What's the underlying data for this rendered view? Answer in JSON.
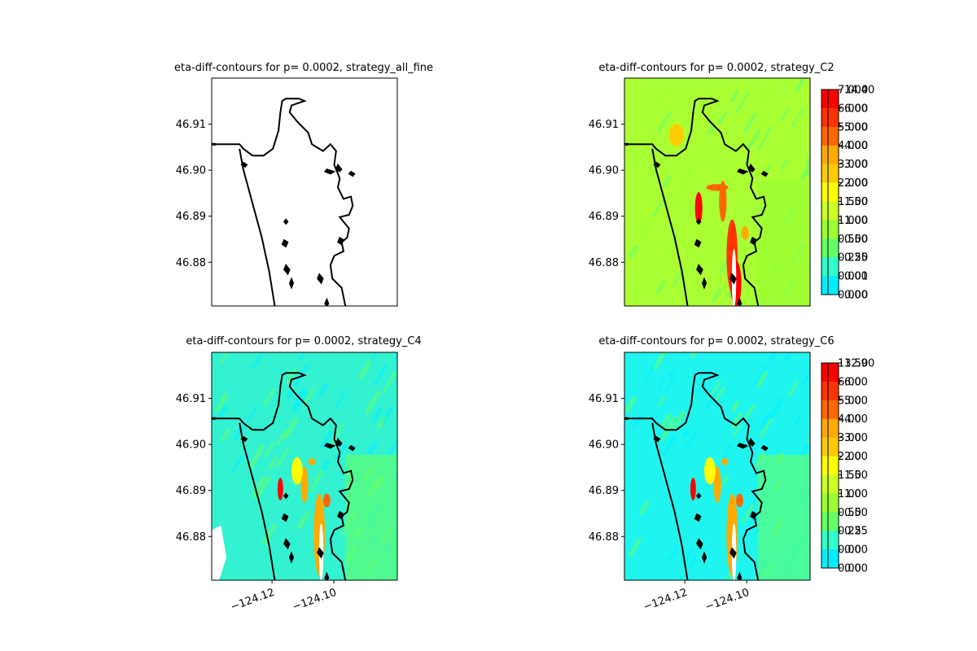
{
  "figure": {
    "background": "#ffffff"
  },
  "contour_levels_colors": [
    "#ffffff",
    "#00f0ff",
    "#33ffcc",
    "#66ff66",
    "#99ff33",
    "#ccff22",
    "#ffff00",
    "#ffcc00",
    "#ffaa00",
    "#ff6600",
    "#ff3300",
    "#ff0000"
  ],
  "coast_color": "#000000",
  "chart_data": [
    {
      "type": "heatmap",
      "id": "all_fine",
      "title": "eta-diff-contours for p= 0.0002, strategy_all_fine",
      "ytick_labels": [
        "46.91",
        "46.90",
        "46.89",
        "46.88"
      ],
      "yticks": [
        46.91,
        46.9,
        46.89,
        46.88
      ],
      "xtick_labels": [],
      "xticks": [],
      "xlim": [
        -124.1395,
        -124.0795
      ],
      "ylim": [
        46.8705,
        46.92
      ],
      "fill": "#ffffff",
      "colorbar": {
        "labels": [
          "7.000",
          "6.000",
          "5.000",
          "4.000",
          "3.000",
          "2.000",
          "1.500",
          "1.000",
          "0.500",
          "0.250",
          "0.001",
          "0.000"
        ]
      }
    },
    {
      "type": "heatmap",
      "id": "C2",
      "title": "eta-diff-contours for p= 0.0002, strategy_C2",
      "ytick_labels": [
        "46.91",
        "46.90",
        "46.89",
        "46.88"
      ],
      "yticks": [
        46.91,
        46.9,
        46.89,
        46.88
      ],
      "xtick_labels": [],
      "xticks": [],
      "xlim": [
        -124.1395,
        -124.0795
      ],
      "ylim": [
        46.8705,
        46.92
      ],
      "fill": "#aaff33",
      "colorbar": {
        "labels": [
          "14.40",
          "6.00",
          "5.00",
          "4.00",
          "3.00",
          "2.00",
          "1.50",
          "1.00",
          "0.50",
          "0.25",
          "0.00",
          "0.00"
        ]
      }
    },
    {
      "type": "heatmap",
      "id": "C4",
      "title": "eta-diff-contours for p= 0.0002, strategy_C4",
      "ytick_labels": [
        "46.91",
        "46.90",
        "46.89",
        "46.88"
      ],
      "yticks": [
        46.91,
        46.9,
        46.89,
        46.88
      ],
      "xtick_labels": [
        "−124.12",
        "−124.10"
      ],
      "xticks": [
        -124.12,
        -124.1
      ],
      "xlim": [
        -124.1395,
        -124.0795
      ],
      "ylim": [
        46.8705,
        46.92
      ],
      "fill": "#33f2d2",
      "colorbar": {
        "labels": [
          "13.50",
          "6.00",
          "5.00",
          "4.00",
          "3.00",
          "2.00",
          "1.50",
          "1.00",
          "0.50",
          "0.25",
          "0.00",
          "0.00"
        ]
      }
    },
    {
      "type": "heatmap",
      "id": "C6",
      "title": "eta-diff-contours for p= 0.0002, strategy_C6",
      "ytick_labels": [
        "46.91",
        "46.90",
        "46.89",
        "46.88"
      ],
      "yticks": [
        46.91,
        46.9,
        46.89,
        46.88
      ],
      "xtick_labels": [
        "−124.12",
        "−124.10"
      ],
      "xticks": [
        -124.12,
        -124.1
      ],
      "xlim": [
        -124.1395,
        -124.0795
      ],
      "ylim": [
        46.8705,
        46.92
      ],
      "fill": "#1ff5ee",
      "colorbar": {
        "labels": [
          "12.90",
          "6.00",
          "5.00",
          "4.00",
          "3.00",
          "2.00",
          "1.50",
          "1.00",
          "0.50",
          "0.25",
          "0.00",
          "0.00"
        ]
      }
    }
  ]
}
